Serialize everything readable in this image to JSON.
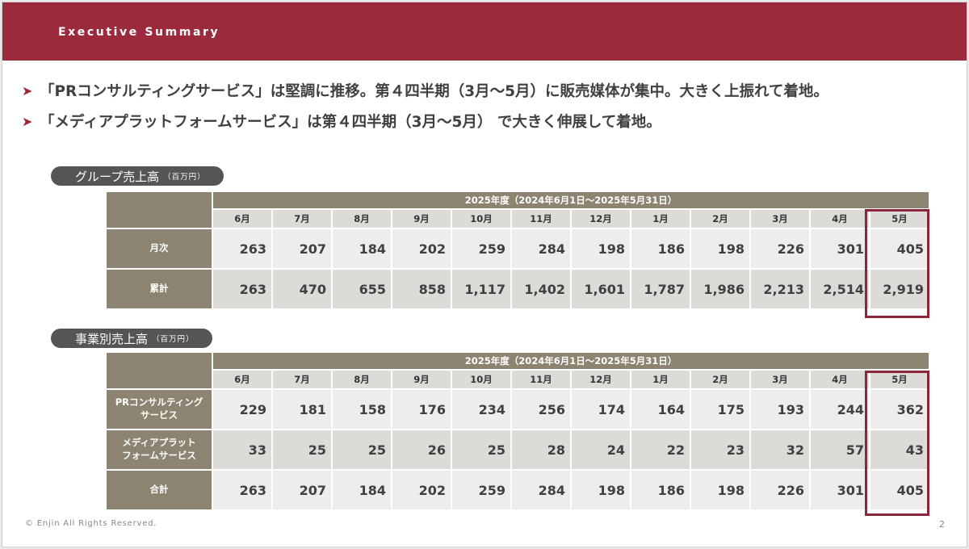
{
  "header": {
    "title": "Executive Summary"
  },
  "bullets": [
    {
      "marker": "➤",
      "text": "「PRコンサルティングサービス」は堅調に推移。第４四半期（3月〜5月）に販売媒体が集中。大きく上振れて着地。"
    },
    {
      "marker": "➤",
      "text": "「メディアプラットフォームサービス」は第４四半期（3月〜5月） で大きく伸展して着地。"
    }
  ],
  "group_sales": {
    "label": "グループ売上高",
    "unit": "（百万円）",
    "fiscal_year": "2025年度（2024年6月1日〜2025年5月31日）",
    "months": [
      "6月",
      "7月",
      "8月",
      "9月",
      "10月",
      "11月",
      "12月",
      "1月",
      "2月",
      "3月",
      "4月",
      "5月"
    ],
    "rows": [
      {
        "label": "月次",
        "values": [
          "263",
          "207",
          "184",
          "202",
          "259",
          "284",
          "198",
          "186",
          "198",
          "226",
          "301",
          "405"
        ]
      },
      {
        "label": "累計",
        "values": [
          "263",
          "470",
          "655",
          "858",
          "1,117",
          "1,402",
          "1,601",
          "1,787",
          "1,986",
          "2,213",
          "2,514",
          "2,919"
        ]
      }
    ]
  },
  "segment_sales": {
    "label": "事業別売上高",
    "unit": "（百万円）",
    "fiscal_year": "2025年度（2024年6月1日〜2025年5月31日）",
    "months": [
      "6月",
      "7月",
      "8月",
      "9月",
      "10月",
      "11月",
      "12月",
      "1月",
      "2月",
      "3月",
      "4月",
      "5月"
    ],
    "rows": [
      {
        "label_line1": "PRコンサルティング",
        "label_line2": "サービス",
        "values": [
          "229",
          "181",
          "158",
          "176",
          "234",
          "256",
          "174",
          "164",
          "175",
          "193",
          "244",
          "362"
        ]
      },
      {
        "label_line1": "メディアプラット",
        "label_line2": "フォームサービス",
        "values": [
          "33",
          "25",
          "25",
          "26",
          "25",
          "28",
          "24",
          "22",
          "23",
          "32",
          "57",
          "43"
        ]
      },
      {
        "label_line1": "合計",
        "label_line2": "",
        "values": [
          "263",
          "207",
          "184",
          "202",
          "259",
          "284",
          "198",
          "186",
          "198",
          "226",
          "301",
          "405"
        ]
      }
    ]
  },
  "footer": {
    "copyright": "© Enjin All Rights Reserved.",
    "page_number": "2"
  },
  "colors": {
    "brand": "#9b2a3c",
    "table_header": "#8c8470",
    "highlight": "#8c2537"
  }
}
